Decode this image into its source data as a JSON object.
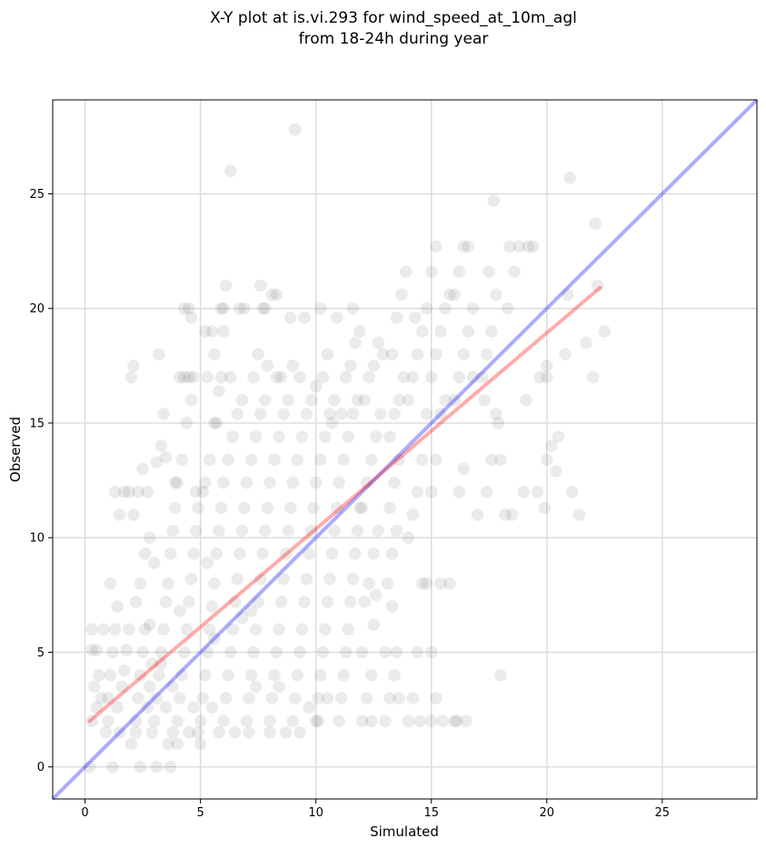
{
  "chart_data": {
    "type": "scatter",
    "title_lines": [
      "X-Y plot at is.vi.293 for wind_speed_at_10m_agl",
      "from 18-24h during year"
    ],
    "xlabel": "Simulated",
    "ylabel": "Observed",
    "xlim": [
      -1.4,
      29.1
    ],
    "ylim": [
      -1.4,
      29.1
    ],
    "xticks": [
      0,
      5,
      10,
      15,
      20,
      25
    ],
    "yticks": [
      0,
      5,
      10,
      15,
      20,
      25
    ],
    "grid": true,
    "point_color": "#000000",
    "point_opacity": 0.08,
    "fit_line": {
      "color": "#ff0000",
      "x": [
        0.2,
        22.3
      ],
      "y": [
        2.0,
        20.9
      ]
    },
    "identity_line": {
      "color": "#0000ff",
      "x": [
        -1.4,
        29.1
      ],
      "y": [
        -1.4,
        29.1
      ]
    },
    "points": [
      [
        0.2,
        0
      ],
      [
        1.2,
        0
      ],
      [
        2.4,
        0
      ],
      [
        3.1,
        0
      ],
      [
        3.7,
        0
      ],
      [
        0.3,
        2
      ],
      [
        0.5,
        2.6
      ],
      [
        0.4,
        3.5
      ],
      [
        0.6,
        4
      ],
      [
        0.7,
        3
      ],
      [
        0.9,
        1.5
      ],
      [
        0.3,
        5.1
      ],
      [
        0.3,
        6
      ],
      [
        0.8,
        6
      ],
      [
        0.5,
        5.1
      ],
      [
        1.0,
        2
      ],
      [
        1.0,
        3
      ],
      [
        1.1,
        4
      ],
      [
        1.2,
        5
      ],
      [
        1.3,
        6
      ],
      [
        1.4,
        2.6
      ],
      [
        1.5,
        1.5
      ],
      [
        1.6,
        3.5
      ],
      [
        1.7,
        4.2
      ],
      [
        1.8,
        5.1
      ],
      [
        1.9,
        6
      ],
      [
        1.1,
        8
      ],
      [
        1.3,
        12
      ],
      [
        1.7,
        12
      ],
      [
        1.9,
        12
      ],
      [
        1.5,
        11
      ],
      [
        2.0,
        17
      ],
      [
        2.1,
        17.5
      ],
      [
        1.4,
        7
      ],
      [
        2.0,
        1
      ],
      [
        2.2,
        2
      ],
      [
        2.3,
        3
      ],
      [
        2.4,
        4
      ],
      [
        2.5,
        5
      ],
      [
        2.6,
        6
      ],
      [
        2.7,
        2.6
      ],
      [
        2.8,
        3.5
      ],
      [
        2.9,
        4.5
      ],
      [
        2.2,
        7.2
      ],
      [
        2.4,
        8
      ],
      [
        2.6,
        9.3
      ],
      [
        2.8,
        10
      ],
      [
        2.3,
        12
      ],
      [
        2.7,
        12
      ],
      [
        2.5,
        13
      ],
      [
        2.2,
        1.5
      ],
      [
        2.9,
        1.5
      ],
      [
        2.1,
        11
      ],
      [
        2.8,
        6.2
      ],
      [
        3.0,
        2
      ],
      [
        3.1,
        3
      ],
      [
        3.2,
        4
      ],
      [
        3.3,
        5
      ],
      [
        3.4,
        6
      ],
      [
        3.5,
        7.2
      ],
      [
        3.6,
        8
      ],
      [
        3.7,
        9.3
      ],
      [
        3.8,
        10.3
      ],
      [
        3.9,
        11.3
      ],
      [
        3.1,
        13.3
      ],
      [
        3.3,
        14
      ],
      [
        3.4,
        15.4
      ],
      [
        3.5,
        13.5
      ],
      [
        3.6,
        1
      ],
      [
        3.8,
        1.5
      ],
      [
        3.2,
        18
      ],
      [
        3.9,
        12.4
      ],
      [
        3.0,
        8.9
      ],
      [
        3.5,
        2.6
      ],
      [
        3.8,
        3.5
      ],
      [
        3.3,
        4.5
      ],
      [
        4.0,
        2
      ],
      [
        4.1,
        3
      ],
      [
        4.2,
        4
      ],
      [
        4.3,
        5
      ],
      [
        4.4,
        6
      ],
      [
        4.5,
        7.2
      ],
      [
        4.6,
        8.2
      ],
      [
        4.7,
        9.3
      ],
      [
        4.8,
        10.3
      ],
      [
        4.9,
        11.3
      ],
      [
        4.0,
        12.4
      ],
      [
        4.2,
        13.4
      ],
      [
        4.4,
        15
      ],
      [
        4.6,
        16
      ],
      [
        4.1,
        17
      ],
      [
        4.3,
        17
      ],
      [
        4.5,
        17
      ],
      [
        4.7,
        17
      ],
      [
        4.8,
        12
      ],
      [
        4.0,
        1
      ],
      [
        4.5,
        1.5
      ],
      [
        4.3,
        20
      ],
      [
        4.5,
        20
      ],
      [
        4.6,
        19.6
      ],
      [
        4.9,
        1.5
      ],
      [
        4.1,
        6.8
      ],
      [
        4.7,
        2.6
      ],
      [
        5.0,
        1
      ],
      [
        5.0,
        2
      ],
      [
        5.1,
        3
      ],
      [
        5.2,
        4
      ],
      [
        5.3,
        5
      ],
      [
        5.4,
        6
      ],
      [
        5.5,
        7
      ],
      [
        5.6,
        8
      ],
      [
        5.7,
        9.3
      ],
      [
        5.8,
        10.3
      ],
      [
        5.9,
        11.3
      ],
      [
        5.2,
        12.4
      ],
      [
        5.4,
        13.4
      ],
      [
        5.6,
        15
      ],
      [
        5.8,
        16.4
      ],
      [
        5.3,
        17
      ],
      [
        5.9,
        17
      ],
      [
        5.6,
        18
      ],
      [
        5.2,
        19
      ],
      [
        5.5,
        19
      ],
      [
        5.9,
        20
      ],
      [
        5.7,
        15
      ],
      [
        5.1,
        12
      ],
      [
        5.5,
        2.6
      ],
      [
        5.8,
        1.5
      ],
      [
        5.3,
        8.9
      ],
      [
        5.6,
        5.6
      ],
      [
        6.0,
        2
      ],
      [
        6.1,
        3
      ],
      [
        6.2,
        4
      ],
      [
        6.3,
        5
      ],
      [
        6.4,
        6
      ],
      [
        6.5,
        7.2
      ],
      [
        6.6,
        8.2
      ],
      [
        6.7,
        9.3
      ],
      [
        6.8,
        10.3
      ],
      [
        6.9,
        11.3
      ],
      [
        6.0,
        12.4
      ],
      [
        6.2,
        13.4
      ],
      [
        6.4,
        14.4
      ],
      [
        6.6,
        15.4
      ],
      [
        6.8,
        16
      ],
      [
        6.3,
        17
      ],
      [
        6.0,
        20
      ],
      [
        6.1,
        21
      ],
      [
        6.3,
        26
      ],
      [
        6.7,
        20
      ],
      [
        6.9,
        20
      ],
      [
        6.5,
        1.5
      ],
      [
        6.0,
        19
      ],
      [
        6.8,
        6.5
      ],
      [
        7.0,
        2
      ],
      [
        7.1,
        3
      ],
      [
        7.2,
        4
      ],
      [
        7.3,
        5
      ],
      [
        7.4,
        6
      ],
      [
        7.5,
        7.2
      ],
      [
        7.6,
        8.2
      ],
      [
        7.7,
        9.3
      ],
      [
        7.8,
        10.3
      ],
      [
        7.9,
        11.3
      ],
      [
        7.0,
        12.4
      ],
      [
        7.2,
        13.4
      ],
      [
        7.4,
        14.4
      ],
      [
        7.6,
        15.4
      ],
      [
        7.8,
        16
      ],
      [
        7.3,
        17
      ],
      [
        7.5,
        18
      ],
      [
        7.7,
        20
      ],
      [
        7.8,
        20
      ],
      [
        7.6,
        21
      ],
      [
        7.9,
        17.5
      ],
      [
        7.1,
        1.5
      ],
      [
        7.4,
        3.5
      ],
      [
        7.2,
        6.8
      ],
      [
        8.0,
        2
      ],
      [
        8.1,
        3
      ],
      [
        8.2,
        4
      ],
      [
        8.3,
        5
      ],
      [
        8.4,
        6
      ],
      [
        8.5,
        7.2
      ],
      [
        8.6,
        8.2
      ],
      [
        8.7,
        9.3
      ],
      [
        8.8,
        10.3
      ],
      [
        8.9,
        11.3
      ],
      [
        8.0,
        12.4
      ],
      [
        8.2,
        13.4
      ],
      [
        8.4,
        14.4
      ],
      [
        8.6,
        15.4
      ],
      [
        8.8,
        16
      ],
      [
        8.3,
        17
      ],
      [
        8.5,
        17
      ],
      [
        8.1,
        20.6
      ],
      [
        8.3,
        20.6
      ],
      [
        8.9,
        19.6
      ],
      [
        8.0,
        1.5
      ],
      [
        8.7,
        1.5
      ],
      [
        8.4,
        3.5
      ],
      [
        9.0,
        2
      ],
      [
        9.1,
        3
      ],
      [
        9.2,
        4
      ],
      [
        9.3,
        5
      ],
      [
        9.4,
        6
      ],
      [
        9.5,
        7.2
      ],
      [
        9.6,
        8.2
      ],
      [
        9.7,
        9.3
      ],
      [
        9.8,
        10.3
      ],
      [
        9.9,
        11.3
      ],
      [
        9.0,
        12.4
      ],
      [
        9.2,
        13.4
      ],
      [
        9.4,
        14.4
      ],
      [
        9.6,
        15.4
      ],
      [
        9.8,
        16
      ],
      [
        9.3,
        17
      ],
      [
        9.5,
        19.6
      ],
      [
        9.1,
        27.8
      ],
      [
        9.0,
        17.5
      ],
      [
        9.7,
        2.6
      ],
      [
        9.3,
        1.5
      ],
      [
        10.0,
        2
      ],
      [
        10.1,
        3
      ],
      [
        10.2,
        4
      ],
      [
        10.3,
        5
      ],
      [
        10.4,
        6
      ],
      [
        10.5,
        7.2
      ],
      [
        10.6,
        8.2
      ],
      [
        10.7,
        9.3
      ],
      [
        10.8,
        10.3
      ],
      [
        10.9,
        11.3
      ],
      [
        10.0,
        12.4
      ],
      [
        10.2,
        13.4
      ],
      [
        10.4,
        14.4
      ],
      [
        10.6,
        15.4
      ],
      [
        10.8,
        16
      ],
      [
        10.3,
        17
      ],
      [
        10.5,
        18
      ],
      [
        10.2,
        20
      ],
      [
        10.9,
        19.6
      ],
      [
        10.0,
        16.6
      ],
      [
        10.7,
        15
      ],
      [
        10.1,
        2
      ],
      [
        10.5,
        3
      ],
      [
        11.0,
        2
      ],
      [
        11.1,
        3
      ],
      [
        11.2,
        4
      ],
      [
        11.3,
        5
      ],
      [
        11.4,
        6
      ],
      [
        11.5,
        7.2
      ],
      [
        11.6,
        8.2
      ],
      [
        11.7,
        9.3
      ],
      [
        11.8,
        10.3
      ],
      [
        11.9,
        11.3
      ],
      [
        11.0,
        12.4
      ],
      [
        11.2,
        13.4
      ],
      [
        11.4,
        14.4
      ],
      [
        11.6,
        15.4
      ],
      [
        11.8,
        16
      ],
      [
        11.3,
        17
      ],
      [
        11.5,
        17.5
      ],
      [
        11.7,
        18.5
      ],
      [
        11.6,
        20
      ],
      [
        11.9,
        19
      ],
      [
        11.1,
        15.4
      ],
      [
        12.0,
        2
      ],
      [
        12.2,
        3
      ],
      [
        12.4,
        4
      ],
      [
        12.0,
        5
      ],
      [
        12.5,
        6.2
      ],
      [
        12.1,
        7.2
      ],
      [
        12.3,
        8
      ],
      [
        12.5,
        9.3
      ],
      [
        12.7,
        10.3
      ],
      [
        12.0,
        11.3
      ],
      [
        12.2,
        12.4
      ],
      [
        12.4,
        13.4
      ],
      [
        12.6,
        14.4
      ],
      [
        12.8,
        15.4
      ],
      [
        12.1,
        16
      ],
      [
        12.3,
        17
      ],
      [
        12.5,
        17.5
      ],
      [
        12.7,
        18.5
      ],
      [
        12.9,
        18
      ],
      [
        12.4,
        2
      ],
      [
        12.6,
        7.5
      ],
      [
        13.0,
        2
      ],
      [
        13.2,
        3
      ],
      [
        13.4,
        4
      ],
      [
        13.0,
        5
      ],
      [
        13.3,
        7
      ],
      [
        13.1,
        8
      ],
      [
        13.3,
        9.3
      ],
      [
        13.5,
        10.3
      ],
      [
        13.2,
        11.3
      ],
      [
        13.4,
        12.4
      ],
      [
        13.6,
        13.4
      ],
      [
        13.2,
        14.4
      ],
      [
        13.4,
        15.4
      ],
      [
        13.6,
        16
      ],
      [
        13.8,
        17
      ],
      [
        13.3,
        18
      ],
      [
        13.5,
        19.6
      ],
      [
        13.7,
        20.6
      ],
      [
        13.9,
        21.6
      ],
      [
        13.6,
        3
      ],
      [
        13.5,
        5
      ],
      [
        14.0,
        2
      ],
      [
        14.2,
        3
      ],
      [
        14.4,
        5
      ],
      [
        14.6,
        8
      ],
      [
        14.0,
        10
      ],
      [
        14.2,
        11
      ],
      [
        14.4,
        12
      ],
      [
        14.6,
        13.4
      ],
      [
        14.8,
        15.4
      ],
      [
        14.0,
        16
      ],
      [
        14.2,
        17
      ],
      [
        14.4,
        18
      ],
      [
        14.6,
        19
      ],
      [
        14.8,
        20
      ],
      [
        14.3,
        19.6
      ],
      [
        14.5,
        2
      ],
      [
        14.8,
        8
      ],
      [
        15.0,
        2
      ],
      [
        15.2,
        3
      ],
      [
        15.4,
        8
      ],
      [
        15.0,
        12
      ],
      [
        15.2,
        13.4
      ],
      [
        15.4,
        15.4
      ],
      [
        15.6,
        16
      ],
      [
        15.0,
        17
      ],
      [
        15.2,
        18
      ],
      [
        15.4,
        19
      ],
      [
        15.6,
        20
      ],
      [
        15.8,
        20.6
      ],
      [
        15.0,
        21.6
      ],
      [
        15.2,
        22.7
      ],
      [
        15.0,
        5
      ],
      [
        15.5,
        2
      ],
      [
        15.8,
        8
      ],
      [
        16.0,
        2
      ],
      [
        16.2,
        12
      ],
      [
        16.4,
        13
      ],
      [
        16.0,
        16
      ],
      [
        16.2,
        17
      ],
      [
        16.4,
        18
      ],
      [
        16.6,
        19
      ],
      [
        16.8,
        20
      ],
      [
        16.0,
        20.6
      ],
      [
        16.2,
        21.6
      ],
      [
        16.4,
        22.7
      ],
      [
        16.6,
        22.7
      ],
      [
        16.1,
        2
      ],
      [
        16.5,
        2
      ],
      [
        16.8,
        17
      ],
      [
        17.0,
        11
      ],
      [
        17.4,
        12
      ],
      [
        17.6,
        13.4
      ],
      [
        17.8,
        15.4
      ],
      [
        17.2,
        17
      ],
      [
        17.4,
        18
      ],
      [
        17.6,
        19
      ],
      [
        17.8,
        20.6
      ],
      [
        17.5,
        21.6
      ],
      [
        17.7,
        24.7
      ],
      [
        17.3,
        16
      ],
      [
        17.9,
        15
      ],
      [
        18.0,
        4
      ],
      [
        18.2,
        11
      ],
      [
        18.4,
        22.7
      ],
      [
        18.6,
        21.6
      ],
      [
        18.8,
        22.7
      ],
      [
        18.0,
        13.4
      ],
      [
        18.3,
        20
      ],
      [
        18.5,
        11
      ],
      [
        19.0,
        12
      ],
      [
        19.2,
        22.7
      ],
      [
        19.4,
        22.7
      ],
      [
        19.1,
        16
      ],
      [
        19.6,
        12
      ],
      [
        19.9,
        11.3
      ],
      [
        19.7,
        17
      ],
      [
        20.0,
        13.4
      ],
      [
        20.2,
        14
      ],
      [
        20.5,
        14.4
      ],
      [
        20.4,
        12.9
      ],
      [
        20.0,
        17
      ],
      [
        20.0,
        17.5
      ],
      [
        20.8,
        18
      ],
      [
        20.9,
        20.6
      ],
      [
        21.0,
        25.7
      ],
      [
        21.1,
        12
      ],
      [
        21.4,
        11
      ],
      [
        21.7,
        18.5
      ],
      [
        22.0,
        17
      ],
      [
        22.1,
        23.7
      ],
      [
        22.2,
        21
      ],
      [
        22.5,
        19
      ]
    ]
  }
}
